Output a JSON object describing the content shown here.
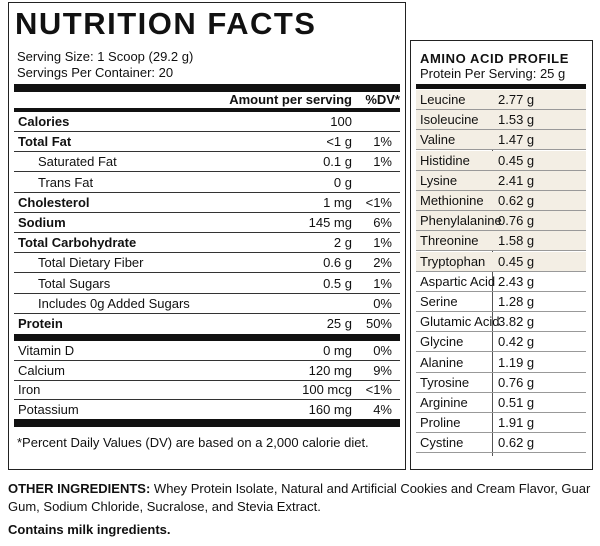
{
  "nutrition": {
    "title": "NUTRITION FACTS",
    "serving_size": "Serving Size: 1 Scoop (29.2 g)",
    "servings": "Servings Per Container: 20",
    "header": [
      "Amount per serving",
      "%DV*"
    ],
    "rows": [
      [
        "Calories",
        "100"
      ],
      [
        "Total Fat",
        "<1 g",
        "1%"
      ],
      [
        "Saturated Fat",
        "0.1 g",
        "1%"
      ],
      [
        "Trans Fat",
        "0 g"
      ],
      [
        "Cholesterol",
        "1 mg",
        "<1%"
      ],
      [
        "Sodium",
        "145 mg",
        "6%"
      ],
      [
        "Total Carbohydrate",
        "2 g",
        "1%"
      ],
      [
        "Total Dietary Fiber",
        "0.6 g",
        "2%"
      ],
      [
        "Total Sugars",
        "0.5 g",
        "1%"
      ],
      [
        "Includes 0g Added Sugars",
        "0%"
      ],
      [
        "Protein",
        "25 g",
        "50%"
      ],
      [
        "Vitamin D",
        "0 mg",
        "0%"
      ],
      [
        "Calcium",
        "120 mg",
        "9%"
      ],
      [
        "Iron",
        "100 mcg",
        "<1%"
      ],
      [
        "Potassium",
        "160 mg",
        "4%"
      ]
    ],
    "footnote": "*Percent Daily Values (DV) are based on a 2,000 calorie diet."
  },
  "amino": {
    "title": "AMINO ACID PROFILE",
    "subtitle": "Protein Per Serving: 25 g",
    "rows": [
      [
        "Leucine",
        "2.77 g"
      ],
      [
        "Isoleucine",
        "1.53 g"
      ],
      [
        "Valine",
        "1.47 g"
      ],
      [
        "Histidine",
        "0.45 g"
      ],
      [
        "Lysine",
        "2.41 g"
      ],
      [
        "Methionine",
        "0.62 g"
      ],
      [
        "Phenylalanine",
        "0.76 g"
      ],
      [
        "Threonine",
        "1.58 g"
      ],
      [
        "Tryptophan",
        "0.45 g"
      ],
      [
        "Aspartic Acid",
        "2.43 g"
      ],
      [
        "Serine",
        "1.28 g"
      ],
      [
        "Glutamic Acid",
        "3.82 g"
      ],
      [
        "Glycine",
        "0.42 g"
      ],
      [
        "Alanine",
        "1.19 g"
      ],
      [
        "Tyrosine",
        "0.76 g"
      ],
      [
        "Arginine",
        "0.51 g"
      ],
      [
        "Proline",
        "1.91 g"
      ],
      [
        "Cystine",
        "0.62 g"
      ]
    ]
  },
  "ingredients": {
    "label": "OTHER INGREDIENTS:",
    "text": "Whey Protein Isolate, Natural and Artificial Cookies and Cream Flavor, Guar Gum, Sodium Chloride, Sucralose, and Stevia Extract."
  },
  "allergen": "Contains milk ingredients."
}
